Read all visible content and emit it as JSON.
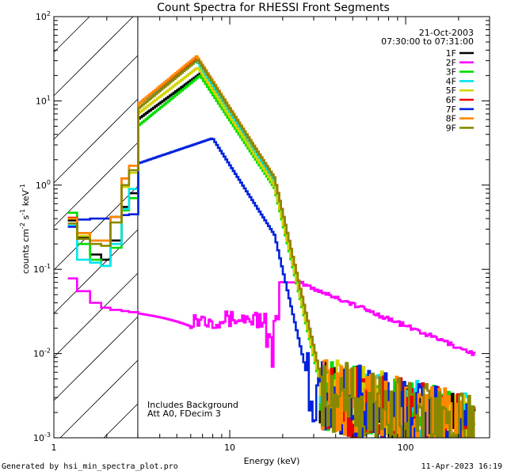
{
  "chart_data": {
    "type": "line",
    "title": "Count Spectra for RHESSI Front Segments",
    "date": "21-Oct-2003",
    "time_range": "07:30:00 to 07:31:00",
    "xlabel": "Energy (keV)",
    "ylabel_parts": [
      "counts cm",
      "-2",
      " s",
      "-1",
      " keV",
      "-1"
    ],
    "xscale": "log",
    "yscale": "log",
    "xlim": [
      1,
      300
    ],
    "ylim": [
      0.001,
      100
    ],
    "x_major_ticks": [
      {
        "value": 1,
        "label": "1"
      },
      {
        "value": 10,
        "label": "10"
      },
      {
        "value": 100,
        "label": "100"
      }
    ],
    "y_major_ticks": [
      {
        "value": 0.001,
        "base": "10",
        "exp": "-3"
      },
      {
        "value": 0.01,
        "base": "10",
        "exp": "-2"
      },
      {
        "value": 0.1,
        "base": "10",
        "exp": "-1"
      },
      {
        "value": 1,
        "base": "10",
        "exp": "0"
      },
      {
        "value": 10,
        "base": "10",
        "exp": "1"
      },
      {
        "value": 100,
        "base": "10",
        "exp": "2"
      }
    ],
    "hatched_region": {
      "xmin": 1,
      "xmax": 3
    },
    "annotations": [
      "Includes Background",
      "Att A0, FDecim 3"
    ],
    "series": [
      {
        "name": "1F",
        "color": "#000000",
        "low": [
          0.38,
          0.24,
          0.15,
          0.13,
          0.22,
          0.55,
          0.8
        ],
        "peak": 22,
        "peak_e": 7.0,
        "hi": 6,
        "drop": 0.95,
        "bump": 0
      },
      {
        "name": "2F",
        "color": "#ff00ff",
        "low": [
          0.078,
          0.055,
          0.04,
          0.035,
          0.033,
          0.032,
          0.031
        ],
        "peak": 0.03,
        "peak_e": 3.2,
        "hi": 0.035,
        "drop": 0.95,
        "bump": 1
      },
      {
        "name": "3F",
        "color": "#00dd00",
        "low": [
          0.47,
          0.2,
          0.13,
          0.11,
          0.18,
          0.5,
          0.7
        ],
        "peak": 20,
        "peak_e": 6.8,
        "hi": 5,
        "drop": 0.93,
        "bump": 0
      },
      {
        "name": "4F",
        "color": "#00e5ee",
        "low": [
          0.33,
          0.13,
          0.12,
          0.11,
          0.2,
          0.52,
          0.9
        ],
        "peak": 30,
        "peak_e": 6.5,
        "hi": 9,
        "drop": 0.95,
        "bump": 0
      },
      {
        "name": "5F",
        "color": "#d4d400",
        "low": [
          0.4,
          0.25,
          0.2,
          0.19,
          0.36,
          0.95,
          1.4
        ],
        "peak": 25,
        "peak_e": 6.6,
        "hi": 7,
        "drop": 0.95,
        "bump": 0
      },
      {
        "name": "6F",
        "color": "#ee0000",
        "low": [
          0.41,
          0.27,
          0.22,
          0.22,
          0.42,
          1.2,
          1.7
        ],
        "peak": 33,
        "peak_e": 6.5,
        "hi": 9,
        "drop": 0.95,
        "bump": 0
      },
      {
        "name": "7F",
        "color": "#0022dd",
        "low": [
          0.32,
          0.39,
          0.4,
          0.4,
          0.42,
          0.44,
          0.45
        ],
        "peak": 3.6,
        "peak_e": 8.0,
        "hi": 1.8,
        "drop": 0.96,
        "bump": 0
      },
      {
        "name": "8F",
        "color": "#ff8800",
        "low": [
          0.4,
          0.27,
          0.22,
          0.22,
          0.42,
          1.2,
          1.7
        ],
        "peak": 34,
        "peak_e": 6.5,
        "hi": 9,
        "drop": 0.96,
        "bump": 0
      },
      {
        "name": "9F",
        "color": "#888800",
        "low": [
          0.35,
          0.23,
          0.2,
          0.19,
          0.36,
          1.0,
          1.5
        ],
        "peak": 31,
        "peak_e": 6.6,
        "hi": 8,
        "drop": 0.95,
        "bump": 0
      }
    ]
  },
  "footer": {
    "left": "Generated by hsi_min_spectra_plot.pro",
    "right": "11-Apr-2023 16:19"
  }
}
